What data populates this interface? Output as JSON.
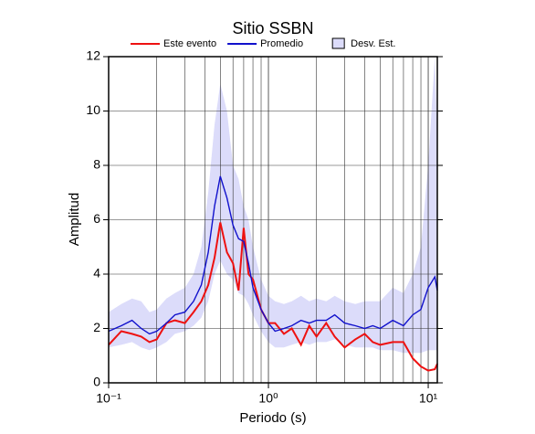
{
  "chart_data": {
    "type": "line",
    "title": "Sitio SSBN",
    "x_label": "Periodo (s)",
    "y_label": "Amplitud",
    "x_log": true,
    "grid": true,
    "legend": "top",
    "x": [
      0.1,
      0.12,
      0.14,
      0.16,
      0.18,
      0.2,
      0.23,
      0.26,
      0.3,
      0.34,
      0.38,
      0.42,
      0.46,
      0.5,
      0.55,
      0.6,
      0.65,
      0.7,
      0.75,
      0.8,
      0.9,
      1.0,
      1.1,
      1.25,
      1.4,
      1.6,
      1.8,
      2.0,
      2.3,
      2.6,
      3.0,
      3.5,
      4.0,
      4.5,
      5.0,
      6.0,
      7.0,
      8.0,
      9.0,
      10.0,
      11.0,
      11.4
    ],
    "series": [
      {
        "name": "Este evento",
        "color": "#ee1111",
        "values": [
          1.4,
          1.9,
          1.8,
          1.7,
          1.5,
          1.6,
          2.2,
          2.3,
          2.2,
          2.6,
          3.0,
          3.6,
          4.6,
          5.9,
          4.8,
          4.4,
          3.4,
          5.7,
          4.0,
          3.8,
          2.7,
          2.2,
          2.2,
          1.8,
          2.0,
          1.4,
          2.1,
          1.7,
          2.2,
          1.7,
          1.3,
          1.6,
          1.8,
          1.5,
          1.4,
          1.5,
          1.5,
          0.9,
          0.6,
          0.45,
          0.5,
          0.7
        ]
      },
      {
        "name": "Promedio",
        "color": "#1111cc",
        "values": [
          1.9,
          2.1,
          2.3,
          2.0,
          1.8,
          1.9,
          2.2,
          2.5,
          2.6,
          3.0,
          3.6,
          4.8,
          6.5,
          7.6,
          6.8,
          5.8,
          5.3,
          5.2,
          4.4,
          3.5,
          2.7,
          2.2,
          1.9,
          2.0,
          2.1,
          2.3,
          2.2,
          2.3,
          2.3,
          2.5,
          2.2,
          2.1,
          2.0,
          2.1,
          2.0,
          2.3,
          2.1,
          2.5,
          2.7,
          3.5,
          3.9,
          3.4
        ]
      },
      {
        "name": "Desv. Est.",
        "type": "band",
        "color": "#dcdcfa",
        "lower": [
          1.3,
          1.4,
          1.5,
          1.3,
          1.2,
          1.3,
          1.5,
          1.8,
          1.9,
          2.1,
          2.4,
          3.0,
          4.0,
          4.5,
          4.0,
          3.8,
          3.3,
          3.2,
          2.9,
          2.5,
          1.9,
          1.5,
          1.3,
          1.3,
          1.4,
          1.5,
          1.4,
          1.5,
          1.5,
          1.6,
          1.4,
          1.3,
          1.3,
          1.3,
          1.2,
          1.2,
          1.1,
          1.1,
          1.1,
          1.2,
          1.2,
          1.2
        ],
        "upper": [
          2.6,
          2.9,
          3.1,
          3.0,
          2.6,
          2.7,
          3.1,
          3.3,
          3.5,
          4.0,
          5.0,
          7.0,
          9.5,
          11.0,
          10.0,
          8.0,
          7.5,
          6.5,
          6.0,
          5.0,
          3.8,
          3.2,
          3.0,
          2.9,
          3.0,
          3.2,
          3.0,
          3.1,
          3.0,
          3.2,
          3.0,
          2.9,
          3.0,
          3.0,
          3.0,
          3.5,
          3.3,
          4.0,
          5.0,
          8.0,
          12.0,
          9.0
        ]
      }
    ],
    "xlim": [
      0.1,
      11.4
    ],
    "ylim": [
      0,
      12
    ],
    "xticks": [
      {
        "value": 0.1,
        "label": "10⁻¹"
      },
      {
        "value": 1,
        "label": "10⁰"
      },
      {
        "value": 10,
        "label": "10¹"
      }
    ],
    "yticks": [
      0,
      2,
      4,
      6,
      8,
      10,
      12
    ]
  }
}
